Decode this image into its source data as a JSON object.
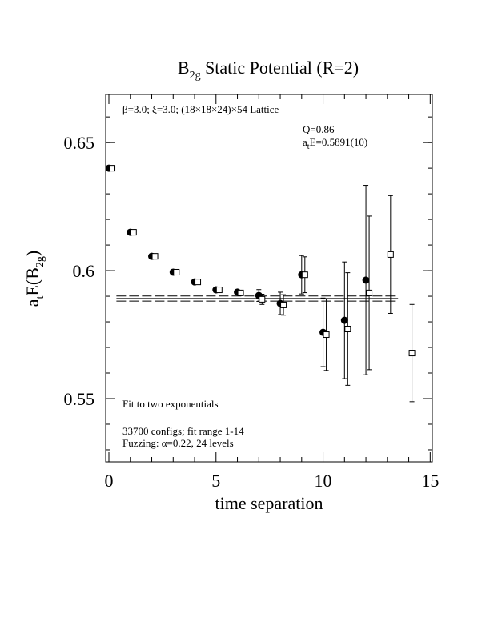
{
  "chart_data": {
    "type": "scatter",
    "title": [
      {
        "t": "B"
      },
      {
        "sub": "2g"
      },
      {
        "t": " Static Potential (R=2)"
      }
    ],
    "xlabel": [
      {
        "t": "time separation"
      }
    ],
    "ylabel": [
      {
        "t": "a"
      },
      {
        "sub": "t"
      },
      {
        "t": "E(B"
      },
      {
        "sub": "2g"
      },
      {
        "t": ")"
      }
    ],
    "annotations": [
      [
        {
          "t": "β=3.0; ξ=3.0; (18×18×24)×54 Lattice"
        }
      ],
      [
        {
          "t": "Q=0.86"
        }
      ],
      [
        {
          "t": "a"
        },
        {
          "sub": "t"
        },
        {
          "t": "E=0.5891(10)"
        }
      ],
      [
        {
          "t": "Fit to two exponentials"
        }
      ],
      [
        {
          "t": "33700 configs; fit range 1-14"
        }
      ],
      [
        {
          "t": "Fuzzing: α=0.22, 24 levels"
        }
      ]
    ],
    "xlim": [
      -0.15,
      15.1
    ],
    "ylim": [
      0.5253,
      0.6688
    ],
    "xticks": [
      0,
      5,
      10,
      15
    ],
    "yticks": [
      0.55,
      0.6,
      0.65
    ],
    "series": [
      {
        "name": "filled",
        "marker": "circle",
        "color": "#000",
        "x": [
          0,
          1,
          2,
          3,
          4,
          5,
          6,
          7,
          8,
          9,
          10,
          11,
          12
        ],
        "values": [
          0.64,
          0.615,
          0.6056,
          0.5994,
          0.5956,
          0.5925,
          0.5916,
          0.5903,
          0.5872,
          0.5984,
          0.5759,
          0.5806,
          0.5963
        ],
        "errors": [
          0.0005,
          0.0005,
          0.0005,
          0.0005,
          0.0005,
          0.0006,
          0.0008,
          0.0023,
          0.0044,
          0.0075,
          0.0134,
          0.0228,
          0.037
        ]
      },
      {
        "name": "open",
        "marker": "square",
        "color": "#000",
        "x": [
          0.15,
          1.15,
          2.15,
          3.15,
          4.15,
          5.15,
          6.15,
          7.15,
          8.15,
          9.15,
          10.15,
          11.15,
          12.15,
          13.15,
          14.15
        ],
        "values": [
          0.64,
          0.615,
          0.6056,
          0.5994,
          0.5956,
          0.5925,
          0.5913,
          0.5888,
          0.5866,
          0.5984,
          0.575,
          0.5772,
          0.5913,
          0.6063,
          0.5678
        ],
        "errors": [
          0.0005,
          0.0005,
          0.0005,
          0.0005,
          0.0005,
          0.0006,
          0.0008,
          0.002,
          0.004,
          0.007,
          0.014,
          0.022,
          0.03,
          0.023,
          0.019
        ]
      }
    ],
    "fit": {
      "value": 0.5891,
      "error": 0.001,
      "x": [
        0.35,
        13.5
      ]
    }
  }
}
